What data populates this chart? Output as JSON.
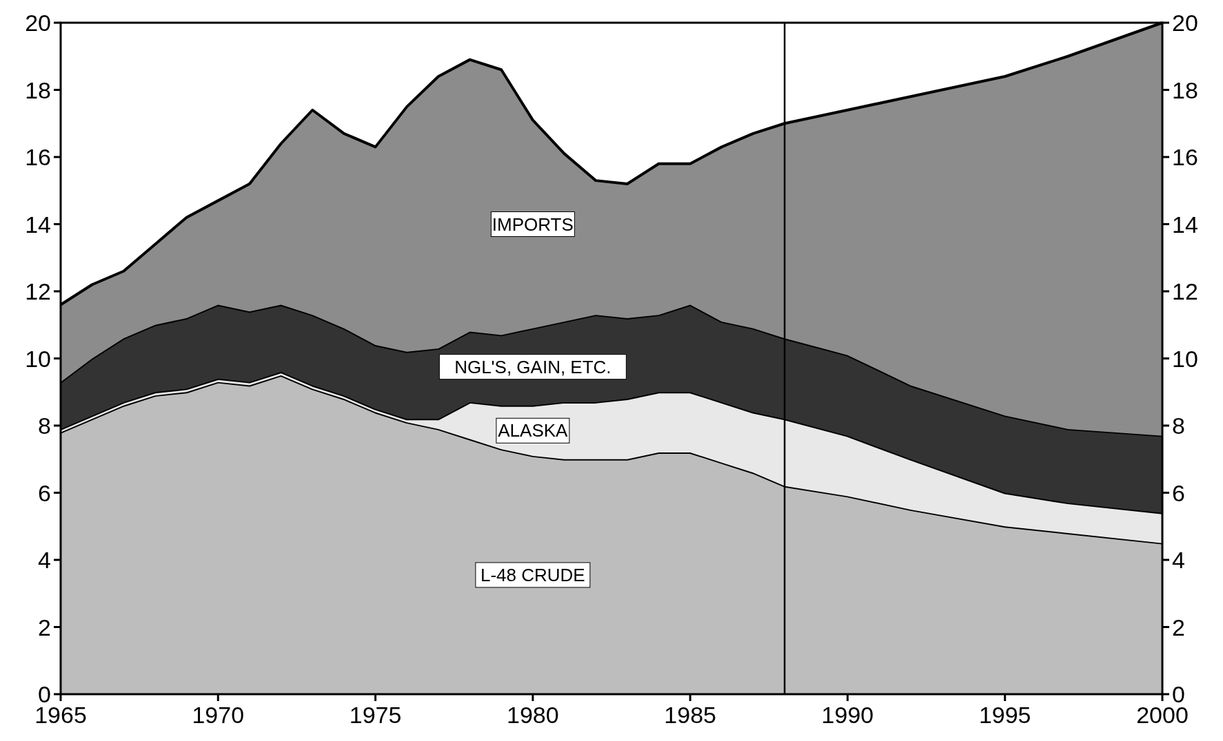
{
  "chart_data": {
    "type": "area",
    "stacked": true,
    "x": [
      1965,
      1966,
      1967,
      1968,
      1969,
      1970,
      1971,
      1972,
      1973,
      1974,
      1975,
      1976,
      1977,
      1978,
      1979,
      1980,
      1981,
      1982,
      1983,
      1984,
      1985,
      1986,
      1987,
      1988,
      1990,
      1992,
      1995,
      1997,
      2000
    ],
    "series": [
      {
        "name": "L-48 CRUDE",
        "color": "#bdbdbd",
        "values": [
          7.8,
          8.2,
          8.6,
          8.9,
          9.0,
          9.3,
          9.2,
          9.5,
          9.1,
          8.8,
          8.4,
          8.1,
          7.9,
          7.6,
          7.3,
          7.1,
          7.0,
          7.0,
          7.0,
          7.2,
          7.2,
          6.9,
          6.6,
          6.2,
          5.9,
          5.5,
          5.0,
          4.8,
          4.5
        ]
      },
      {
        "name": "ALASKA",
        "color": "#e8e8e8",
        "values": [
          0.1,
          0.1,
          0.1,
          0.1,
          0.1,
          0.1,
          0.1,
          0.1,
          0.1,
          0.1,
          0.1,
          0.1,
          0.3,
          1.1,
          1.3,
          1.5,
          1.7,
          1.7,
          1.8,
          1.8,
          1.8,
          1.8,
          1.8,
          2.0,
          1.8,
          1.5,
          1.0,
          0.9,
          0.9
        ]
      },
      {
        "name": "NGL'S, GAIN, ETC.",
        "color": "#333333",
        "values": [
          1.4,
          1.7,
          1.9,
          2.0,
          2.1,
          2.2,
          2.1,
          2.0,
          2.1,
          2.0,
          1.9,
          2.0,
          2.1,
          2.1,
          2.1,
          2.3,
          2.4,
          2.6,
          2.4,
          2.3,
          2.6,
          2.4,
          2.5,
          2.4,
          2.4,
          2.2,
          2.3,
          2.2,
          2.3
        ]
      },
      {
        "name": "IMPORTS",
        "color": "#8c8c8c",
        "values": [
          2.3,
          2.2,
          2.0,
          2.4,
          3.0,
          3.1,
          3.8,
          4.8,
          6.1,
          5.8,
          5.9,
          7.3,
          8.1,
          8.1,
          7.9,
          6.2,
          5.0,
          4.0,
          4.0,
          4.5,
          4.2,
          5.2,
          5.8,
          6.4,
          7.3,
          8.6,
          10.1,
          11.1,
          12.3
        ]
      }
    ],
    "xlim": [
      1965,
      2000
    ],
    "xticks": [
      1965,
      1970,
      1975,
      1980,
      1985,
      1990,
      1995,
      2000
    ],
    "ylim": [
      0,
      20
    ],
    "yticks": [
      0,
      2,
      4,
      6,
      8,
      10,
      12,
      14,
      16,
      18,
      20
    ],
    "y2lim": [
      0,
      20
    ],
    "y2ticks": [
      0,
      2,
      4,
      6,
      8,
      10,
      12,
      14,
      16,
      18,
      20
    ],
    "ref_lines": [
      {
        "axis": "x",
        "value": 1988,
        "color": "#000000"
      }
    ],
    "grid": false,
    "legend": false
  }
}
